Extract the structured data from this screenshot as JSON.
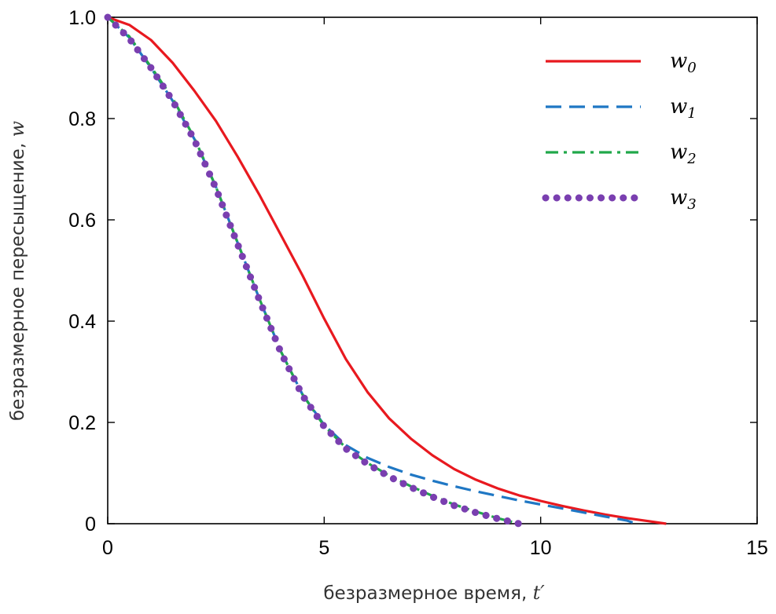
{
  "chart_data": {
    "type": "line",
    "xlabel": "безразмерное время, ",
    "xlabel_symbol": "t′",
    "ylabel": "безразмерное пересыщение, ",
    "ylabel_symbol": "w",
    "xlim": [
      0,
      15
    ],
    "ylim": [
      0,
      1
    ],
    "x_ticks": [
      0,
      5,
      10,
      15
    ],
    "x_tick_labels": [
      "0",
      "5",
      "10",
      "15"
    ],
    "y_ticks": [
      0,
      0.2,
      0.4,
      0.6,
      0.8,
      1.0
    ],
    "y_tick_labels": [
      "0",
      "0.2",
      "0.4",
      "0.6",
      "0.8",
      "1.0"
    ],
    "grid": false,
    "legend_position": "top-right",
    "series": [
      {
        "name": "w",
        "sub": "0",
        "color": "#e8191f",
        "style": "solid",
        "x": [
          0,
          0.5,
          1,
          1.5,
          2,
          2.5,
          3,
          3.5,
          4,
          4.5,
          5,
          5.5,
          6,
          6.5,
          7,
          7.5,
          8,
          8.5,
          9,
          9.5,
          10,
          10.5,
          11,
          11.5,
          12,
          12.5,
          12.9
        ],
        "y": [
          1.0,
          0.985,
          0.955,
          0.91,
          0.855,
          0.795,
          0.725,
          0.65,
          0.57,
          0.49,
          0.405,
          0.325,
          0.26,
          0.208,
          0.168,
          0.135,
          0.108,
          0.087,
          0.07,
          0.056,
          0.045,
          0.035,
          0.026,
          0.018,
          0.011,
          0.005,
          0.0
        ]
      },
      {
        "name": "w",
        "sub": "1",
        "color": "#1f77c4",
        "style": "dashed",
        "x": [
          0,
          0.5,
          1,
          1.5,
          2,
          2.5,
          3,
          3.5,
          4,
          4.5,
          5,
          5.5,
          6,
          6.5,
          7,
          7.5,
          8,
          8.5,
          9,
          9.5,
          10,
          10.5,
          11,
          11.5,
          12,
          12.2
        ],
        "y": [
          1.0,
          0.96,
          0.9,
          0.835,
          0.76,
          0.665,
          0.555,
          0.445,
          0.34,
          0.255,
          0.195,
          0.155,
          0.13,
          0.112,
          0.097,
          0.085,
          0.074,
          0.064,
          0.055,
          0.046,
          0.038,
          0.03,
          0.022,
          0.014,
          0.006,
          0.0
        ]
      },
      {
        "name": "w",
        "sub": "2",
        "color": "#20a84a",
        "style": "dashdot",
        "x": [
          0,
          0.5,
          1,
          1.5,
          2,
          2.5,
          3,
          3.5,
          4,
          4.5,
          5,
          5.5,
          6,
          6.5,
          7,
          7.5,
          8,
          8.5,
          9,
          9.5
        ],
        "y": [
          1.0,
          0.962,
          0.902,
          0.84,
          0.762,
          0.665,
          0.555,
          0.445,
          0.34,
          0.255,
          0.193,
          0.15,
          0.12,
          0.095,
          0.074,
          0.055,
          0.038,
          0.024,
          0.011,
          0.0
        ]
      },
      {
        "name": "w",
        "sub": "3",
        "color": "#7a3fb0",
        "style": "dotted",
        "x": [
          0,
          0.5,
          1,
          1.5,
          2,
          2.5,
          3,
          3.5,
          4,
          4.5,
          5,
          5.5,
          6,
          6.5,
          7,
          7.5,
          8,
          8.5,
          9,
          9.5
        ],
        "y": [
          1.0,
          0.958,
          0.9,
          0.835,
          0.758,
          0.662,
          0.552,
          0.443,
          0.338,
          0.253,
          0.192,
          0.148,
          0.118,
          0.093,
          0.072,
          0.053,
          0.036,
          0.022,
          0.01,
          0.0
        ]
      }
    ]
  }
}
